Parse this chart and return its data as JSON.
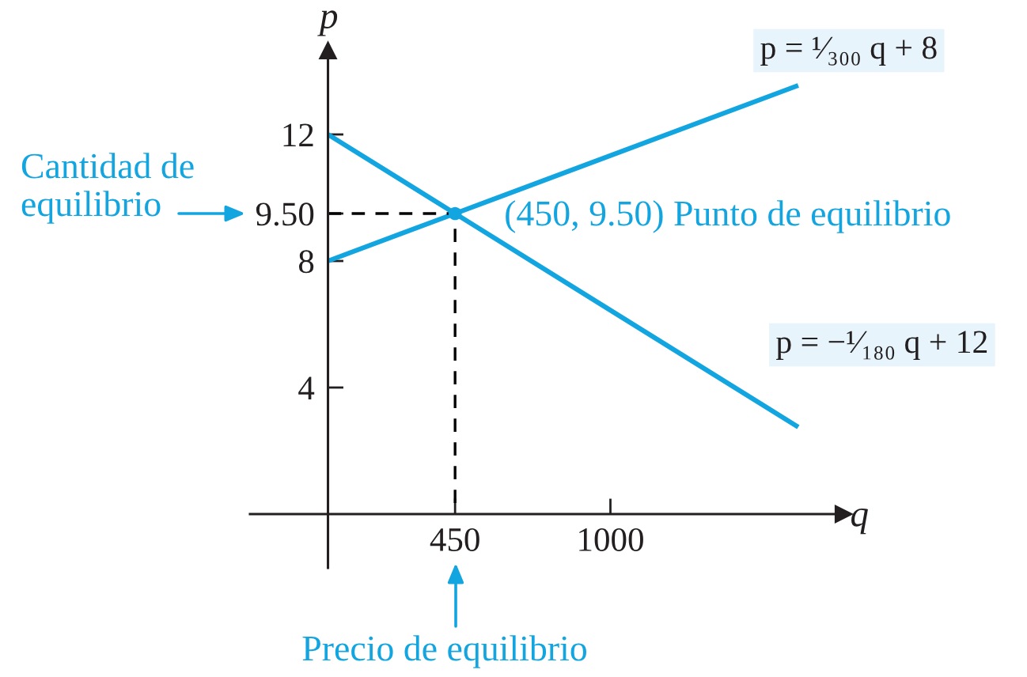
{
  "chart_data": {
    "type": "line",
    "xlabel": "q",
    "ylabel": "p",
    "xlim": [
      -276,
      1825
    ],
    "ylim": [
      -1.7,
      14.65
    ],
    "xticks": [
      450,
      1000
    ],
    "yticks": [
      4,
      8,
      {
        "value": 9.5,
        "label": "9.50"
      },
      12
    ],
    "series": [
      {
        "name": "p = ¹⁄₃₀₀ q + 8",
        "color": "#13a5e0",
        "x": [
          0,
          450,
          1665
        ],
        "values": [
          8,
          9.5,
          13.55
        ]
      },
      {
        "name": "p = −¹⁄₁₈₀ q + 12",
        "color": "#13a5e0",
        "x": [
          0,
          450,
          1665
        ],
        "values": [
          12,
          9.5,
          2.75
        ]
      },
      {
        "color": "#000000",
        "x": [
          0,
          450,
          450
        ],
        "values": [
          9.5,
          9.5,
          0
        ],
        "line_style": "dashed"
      },
      {
        "type": "scatter",
        "color": "#13a5e0",
        "x": [
          450
        ],
        "values": [
          9.5
        ],
        "marker": "circle"
      }
    ],
    "annotations": [
      {
        "text": "(450, 9.50) Punto de equilibrio",
        "x": 450,
        "y": 9.5
      },
      "Cantidad de\nequilibrio",
      "Precio de equilibrio"
    ]
  }
}
